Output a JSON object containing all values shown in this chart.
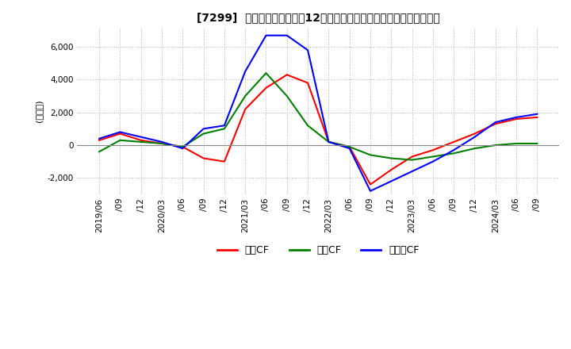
{
  "title": "[7299]  キャッシュフローの12か月移動合計の対前年同期増減額の推移",
  "ylabel": "(百万円)",
  "ylim": [
    -3000,
    7200
  ],
  "yticks": [
    -2000,
    0,
    2000,
    4000,
    6000
  ],
  "series": {
    "営業CF": {
      "color": "#ff0000",
      "data": [
        [
          "2019/06",
          300
        ],
        [
          "2019/09",
          700
        ],
        [
          "2019/12",
          300
        ],
        [
          "2020/03",
          100
        ],
        [
          "2020/06",
          -100
        ],
        [
          "2020/09",
          -800
        ],
        [
          "2020/12",
          -1000
        ],
        [
          "2021/03",
          2200
        ],
        [
          "2021/06",
          3500
        ],
        [
          "2021/09",
          4300
        ],
        [
          "2021/12",
          3800
        ],
        [
          "2022/03",
          200
        ],
        [
          "2022/06",
          -100
        ],
        [
          "2022/09",
          -2400
        ],
        [
          "2022/12",
          -1500
        ],
        [
          "2023/03",
          -700
        ],
        [
          "2023/06",
          -300
        ],
        [
          "2023/09",
          200
        ],
        [
          "2023/12",
          700
        ],
        [
          "2024/03",
          1300
        ],
        [
          "2024/06",
          1600
        ],
        [
          "2024/09",
          1700
        ]
      ]
    },
    "投資CF": {
      "color": "#008000",
      "data": [
        [
          "2019/06",
          -400
        ],
        [
          "2019/09",
          300
        ],
        [
          "2019/12",
          200
        ],
        [
          "2020/03",
          100
        ],
        [
          "2020/06",
          -100
        ],
        [
          "2020/09",
          700
        ],
        [
          "2020/12",
          1000
        ],
        [
          "2021/03",
          3000
        ],
        [
          "2021/06",
          4400
        ],
        [
          "2021/09",
          3000
        ],
        [
          "2021/12",
          1200
        ],
        [
          "2022/03",
          200
        ],
        [
          "2022/06",
          -100
        ],
        [
          "2022/09",
          -600
        ],
        [
          "2022/12",
          -800
        ],
        [
          "2023/03",
          -900
        ],
        [
          "2023/06",
          -700
        ],
        [
          "2023/09",
          -500
        ],
        [
          "2023/12",
          -200
        ],
        [
          "2024/03",
          0
        ],
        [
          "2024/06",
          100
        ],
        [
          "2024/09",
          100
        ]
      ]
    },
    "フリーCF": {
      "color": "#0000ff",
      "data": [
        [
          "2019/06",
          400
        ],
        [
          "2019/09",
          800
        ],
        [
          "2019/12",
          500
        ],
        [
          "2020/03",
          200
        ],
        [
          "2020/06",
          -200
        ],
        [
          "2020/09",
          1000
        ],
        [
          "2020/12",
          1200
        ],
        [
          "2021/03",
          4500
        ],
        [
          "2021/06",
          6700
        ],
        [
          "2021/09",
          6700
        ],
        [
          "2021/12",
          5800
        ],
        [
          "2022/03",
          200
        ],
        [
          "2022/06",
          -200
        ],
        [
          "2022/09",
          -2800
        ],
        [
          "2022/12",
          -2200
        ],
        [
          "2023/03",
          -1600
        ],
        [
          "2023/06",
          -1000
        ],
        [
          "2023/09",
          -300
        ],
        [
          "2023/12",
          500
        ],
        [
          "2024/03",
          1400
        ],
        [
          "2024/06",
          1700
        ],
        [
          "2024/09",
          1900
        ]
      ]
    }
  },
  "legend_labels": [
    "営業CF",
    "投資CF",
    "フリーCF"
  ],
  "legend_colors": [
    "#ff0000",
    "#008000",
    "#0000ff"
  ],
  "background_color": "#ffffff",
  "grid_color": "#b0b0b0",
  "grid_linestyle": "dotted"
}
